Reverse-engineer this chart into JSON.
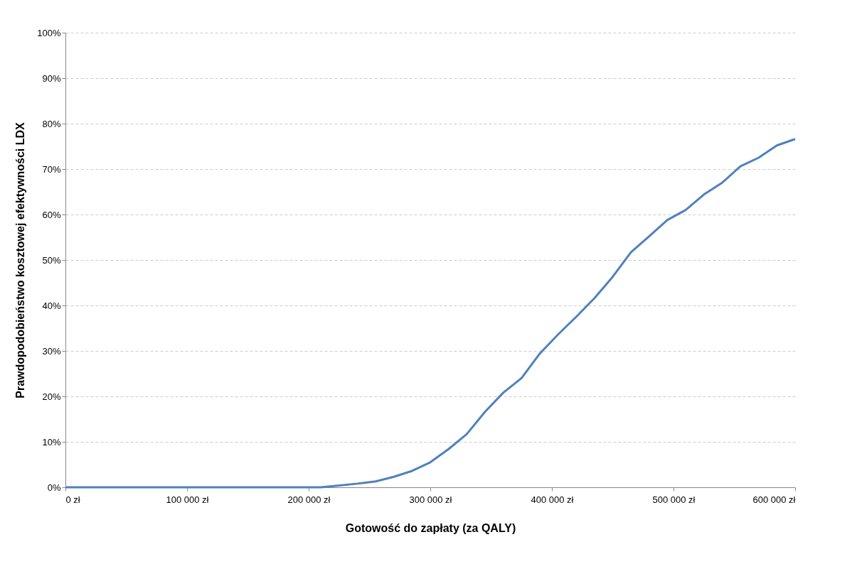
{
  "chart_data": {
    "type": "line",
    "xlabel": "Gotowość do zapłaty (za QALY)",
    "ylabel": "Prawdopodobieństwo kosztowej efektywności LDX",
    "x": [
      0,
      15000,
      30000,
      45000,
      60000,
      75000,
      90000,
      105000,
      120000,
      135000,
      150000,
      165000,
      180000,
      195000,
      210000,
      225000,
      240000,
      255000,
      270000,
      285000,
      300000,
      315000,
      330000,
      345000,
      360000,
      375000,
      390000,
      405000,
      420000,
      435000,
      450000,
      465000,
      480000,
      495000,
      510000,
      525000,
      540000,
      555000,
      570000,
      585000,
      600000
    ],
    "series": [
      {
        "color": "#4f81bd",
        "values": [
          0,
          0,
          0,
          0,
          0,
          0,
          0,
          0,
          0,
          0,
          0,
          0,
          0,
          0,
          0,
          0.4,
          0.8,
          1.3,
          2.3,
          3.6,
          5.5,
          8.4,
          11.7,
          16.6,
          20.8,
          24,
          29.4,
          33.6,
          37.5,
          41.6,
          46.3,
          51.7,
          55.2,
          58.8,
          61,
          64.4,
          67,
          70.6,
          72.5,
          75.2,
          76.6
        ]
      }
    ],
    "xlim": [
      0,
      600000
    ],
    "xticks": [
      {
        "value": 0,
        "label": "0 zł"
      },
      {
        "value": 100000,
        "label": "100 000 zł"
      },
      {
        "value": 200000,
        "label": "200 000 zł"
      },
      {
        "value": 300000,
        "label": "300 000 zł"
      },
      {
        "value": 400000,
        "label": "400 000 zł"
      },
      {
        "value": 500000,
        "label": "500 000 zł"
      },
      {
        "value": 600000,
        "label": "600 000 zł"
      }
    ],
    "ylim": [
      0,
      100
    ],
    "yticks": [
      {
        "value": 0,
        "label": "0%"
      },
      {
        "value": 10,
        "label": "10%"
      },
      {
        "value": 20,
        "label": "20%"
      },
      {
        "value": 30,
        "label": "30%"
      },
      {
        "value": 40,
        "label": "40%"
      },
      {
        "value": 50,
        "label": "50%"
      },
      {
        "value": 60,
        "label": "60%"
      },
      {
        "value": 70,
        "label": "70%"
      },
      {
        "value": 80,
        "label": "80%"
      },
      {
        "value": 90,
        "label": "90%"
      },
      {
        "value": 100,
        "label": "100%"
      }
    ],
    "grid": "y",
    "marker": "none",
    "line_style": "solid"
  }
}
